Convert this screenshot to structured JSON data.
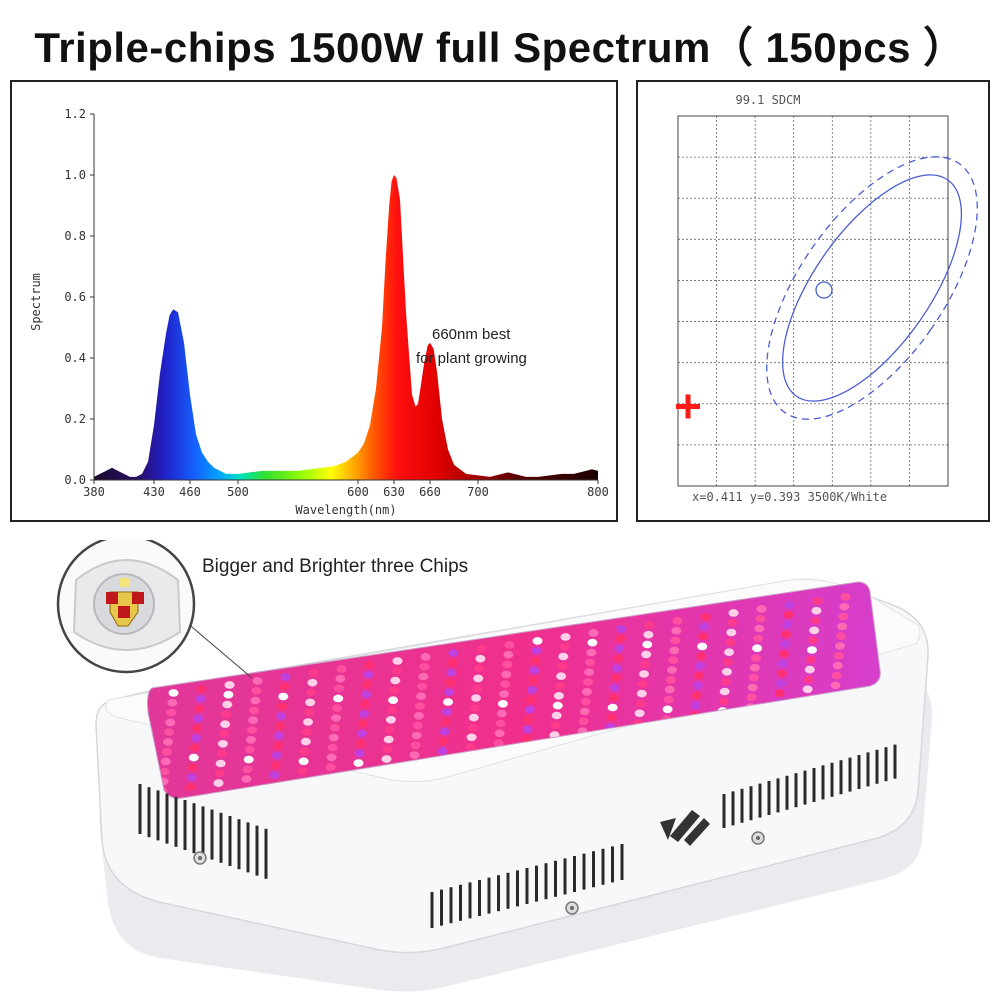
{
  "headline": "Triple-chips 1500W full Spectrum（ 150pcs ）",
  "chip_caption": "Bigger and Brighter three Chips",
  "chart_data": [
    {
      "type": "area",
      "xlabel": "Wavelength(nm)",
      "ylabel": "Spectrum",
      "xlim": [
        380,
        800
      ],
      "ylim": [
        0,
        1.2
      ],
      "x_ticks": [
        {
          "value": 380,
          "label": "380"
        },
        {
          "value": 430,
          "label": "430"
        },
        {
          "value": 460,
          "label": "460"
        },
        {
          "value": 500,
          "label": "500"
        },
        {
          "value": 600,
          "label": "600"
        },
        {
          "value": 630,
          "label": "630"
        },
        {
          "value": 660,
          "label": "660"
        },
        {
          "value": 700,
          "label": "700"
        },
        {
          "value": 800,
          "label": "800"
        }
      ],
      "y_ticks": [
        {
          "value": 0,
          "label": "0.0"
        },
        {
          "value": 0.2,
          "label": "0.2"
        },
        {
          "value": 0.4,
          "label": "0.4"
        },
        {
          "value": 0.6,
          "label": "0.6"
        },
        {
          "value": 0.8,
          "label": "0.8"
        },
        {
          "value": 1.0,
          "label": "1.0"
        },
        {
          "value": 1.2,
          "label": "1.2"
        }
      ],
      "annotation": {
        "line1": "660nm best",
        "line2": "for plant growing",
        "x": 655,
        "y": 0.46
      },
      "x": [
        380,
        390,
        395,
        400,
        410,
        415,
        420,
        425,
        430,
        435,
        440,
        443,
        446,
        450,
        455,
        460,
        465,
        470,
        475,
        480,
        490,
        500,
        510,
        520,
        530,
        540,
        550,
        560,
        570,
        580,
        590,
        600,
        605,
        610,
        615,
        620,
        623,
        626,
        628,
        630,
        632,
        635,
        640,
        645,
        648,
        650,
        652,
        655,
        658,
        660,
        663,
        666,
        670,
        675,
        680,
        690,
        700,
        710,
        720,
        725,
        730,
        740,
        750,
        760,
        770,
        780,
        790,
        795,
        800
      ],
      "y": [
        0.01,
        0.03,
        0.04,
        0.03,
        0.01,
        0.01,
        0.02,
        0.06,
        0.18,
        0.35,
        0.48,
        0.54,
        0.56,
        0.55,
        0.45,
        0.28,
        0.15,
        0.09,
        0.06,
        0.04,
        0.02,
        0.02,
        0.025,
        0.03,
        0.03,
        0.03,
        0.03,
        0.035,
        0.04,
        0.045,
        0.06,
        0.09,
        0.12,
        0.18,
        0.3,
        0.5,
        0.72,
        0.9,
        0.98,
        1.0,
        0.99,
        0.92,
        0.55,
        0.28,
        0.24,
        0.25,
        0.3,
        0.38,
        0.44,
        0.45,
        0.43,
        0.35,
        0.2,
        0.1,
        0.05,
        0.02,
        0.015,
        0.01,
        0.02,
        0.025,
        0.02,
        0.01,
        0.01,
        0.015,
        0.02,
        0.02,
        0.03,
        0.035,
        0.03
      ]
    },
    {
      "type": "scatter",
      "title": "99.1 SDCM",
      "readout": "x=0.411 y=0.393 3500K/White",
      "grid": true,
      "point": "center-circle"
    }
  ],
  "colors": {
    "accent_cross": "#ff1a1a",
    "ellipse": "#4a5fd0"
  }
}
